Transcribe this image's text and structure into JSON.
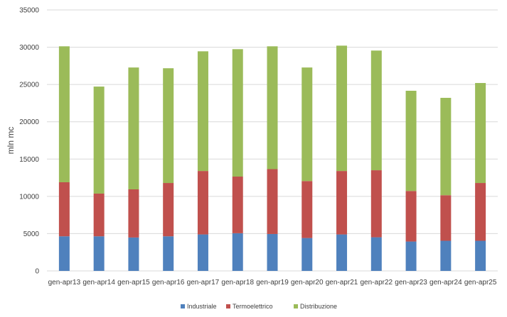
{
  "chart_data": {
    "type": "bar",
    "stacked": true,
    "title": "",
    "xlabel": "",
    "ylabel": "mln mc",
    "ylim": [
      0,
      35000
    ],
    "yticks": [
      0,
      5000,
      10000,
      15000,
      20000,
      25000,
      30000,
      35000
    ],
    "grid": true,
    "legend_position": "bottom",
    "categories": [
      "gen-apr13",
      "gen-apr14",
      "gen-apr15",
      "gen-apr16",
      "gen-apr17",
      "gen-apr18",
      "gen-apr19",
      "gen-apr20",
      "gen-apr21",
      "gen-apr22",
      "gen-apr23",
      "gen-apr24",
      "gen-apr25"
    ],
    "series": [
      {
        "name": "Industriale",
        "color": "#4f81bd",
        "values": [
          4640,
          4640,
          4480,
          4640,
          4890,
          5050,
          4950,
          4410,
          4890,
          4510,
          3940,
          4040,
          4040
        ]
      },
      {
        "name": "Termoelettrico",
        "color": "#c0504d",
        "values": [
          7250,
          5730,
          6460,
          7150,
          8510,
          7600,
          8700,
          7640,
          8510,
          8990,
          6780,
          6110,
          7750
        ]
      },
      {
        "name": "Distribuzione",
        "color": "#9bbb59",
        "values": [
          18230,
          14350,
          16340,
          15390,
          16050,
          17090,
          16470,
          15230,
          16810,
          16050,
          13440,
          13060,
          13410
        ]
      }
    ]
  }
}
